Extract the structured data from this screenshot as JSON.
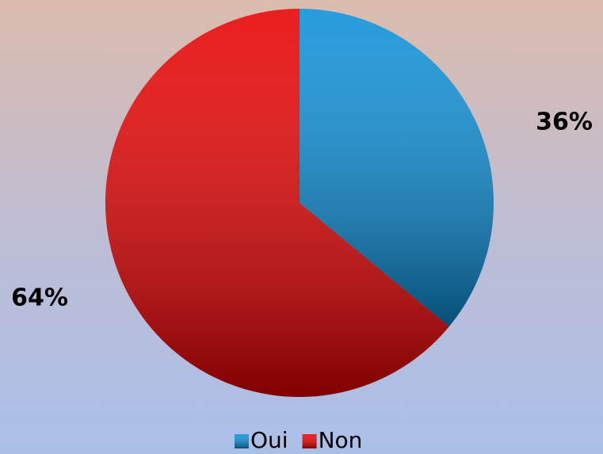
{
  "chart_data": {
    "type": "pie",
    "categories": [
      "Oui",
      "Non"
    ],
    "values": [
      36,
      64
    ],
    "value_labels": [
      "36%",
      "64%"
    ],
    "colors": [
      "#0a8fd8",
      "#e80000"
    ],
    "legend": "bottom"
  }
}
